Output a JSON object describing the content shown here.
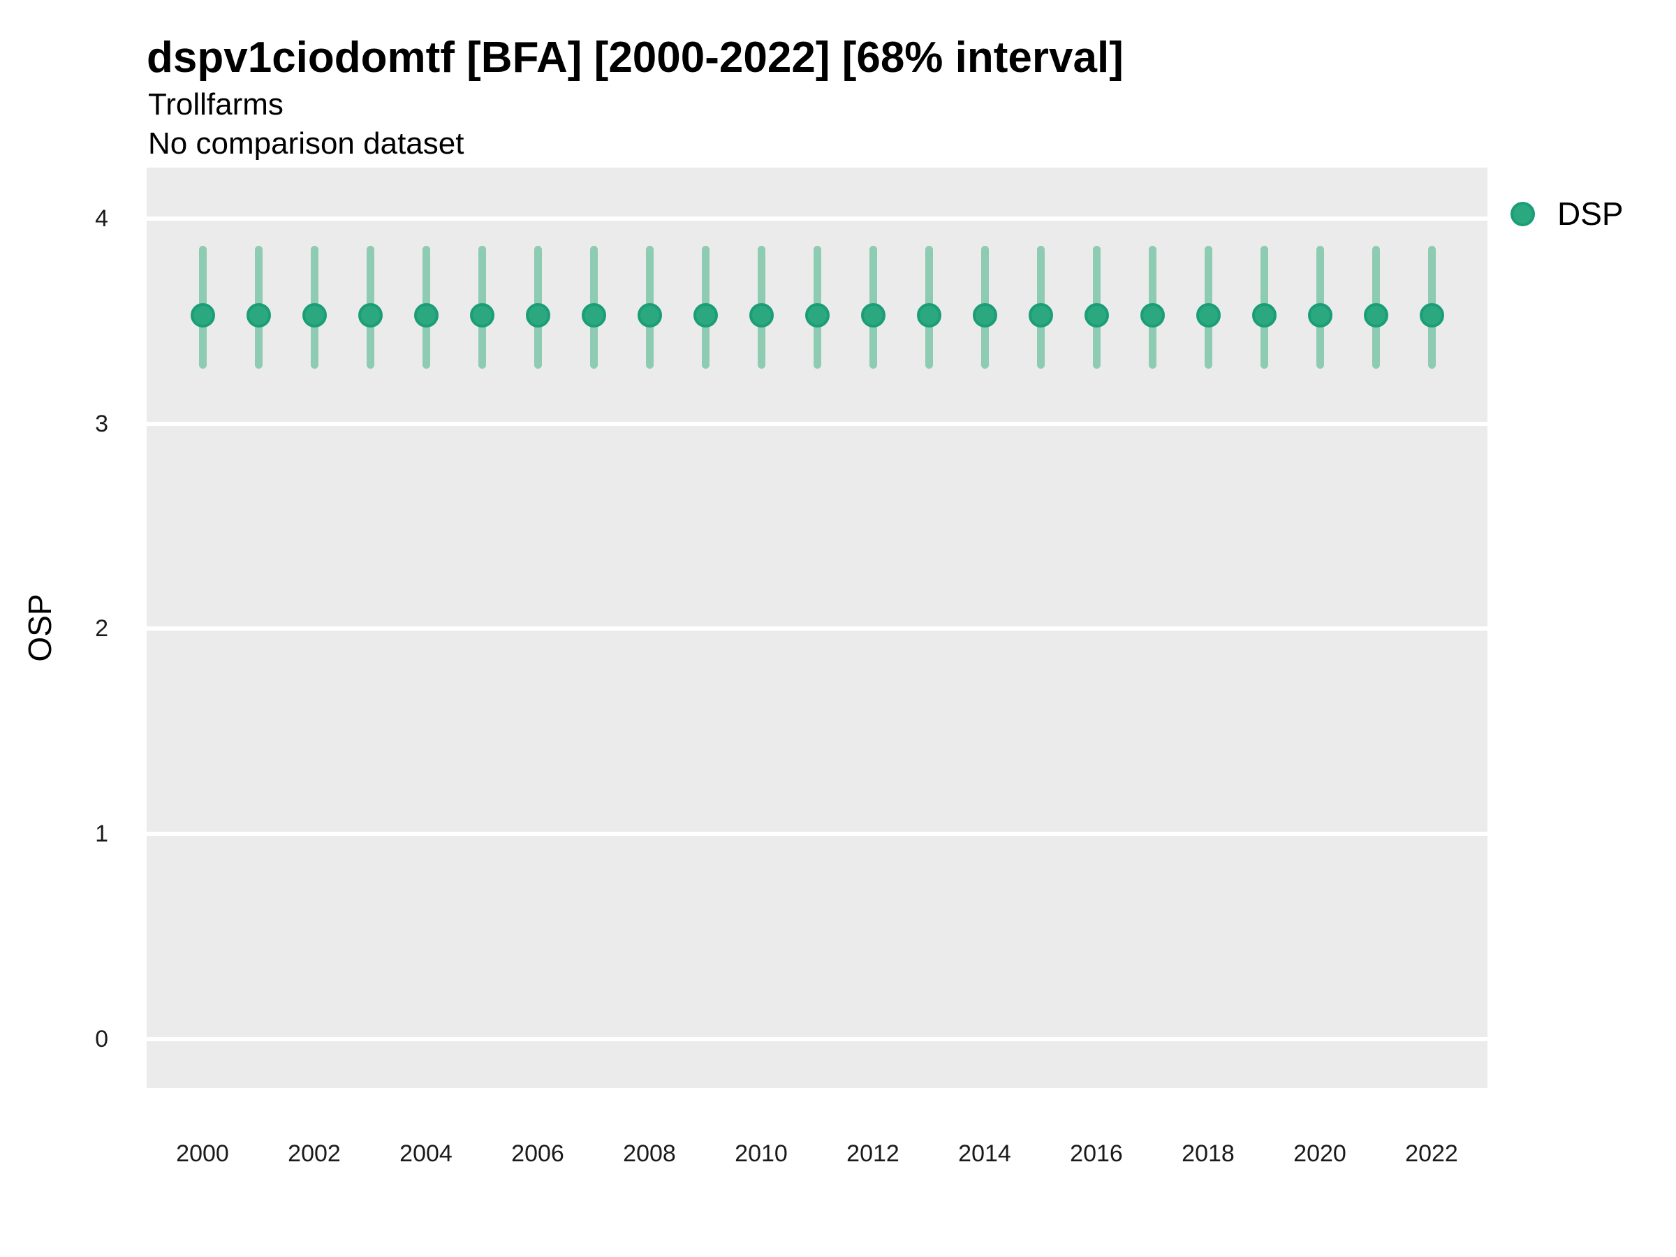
{
  "chart": {
    "title": "dspv1ciodomtf [BFA] [2000-2022] [68% interval]",
    "subtitle1": "Trollfarms",
    "subtitle2": "No comparison dataset",
    "y_axis_label": "OSP",
    "legend_label": "DSP"
  },
  "chart_data": {
    "type": "scatter",
    "subtype": "pointrange",
    "title": "dspv1ciodomtf [BFA] [2000-2022] [68% interval]",
    "subtitle": "Trollfarms / No comparison dataset",
    "xlabel": "",
    "ylabel": "OSP",
    "x": [
      2000,
      2001,
      2002,
      2003,
      2004,
      2005,
      2006,
      2007,
      2008,
      2009,
      2010,
      2011,
      2012,
      2013,
      2014,
      2015,
      2016,
      2017,
      2018,
      2019,
      2020,
      2021,
      2022
    ],
    "series": [
      {
        "name": "DSP",
        "values": [
          3.53,
          3.53,
          3.53,
          3.53,
          3.53,
          3.53,
          3.53,
          3.53,
          3.53,
          3.53,
          3.53,
          3.53,
          3.53,
          3.53,
          3.53,
          3.53,
          3.53,
          3.53,
          3.53,
          3.53,
          3.53,
          3.53,
          3.53
        ],
        "lower": [
          3.27,
          3.27,
          3.27,
          3.27,
          3.27,
          3.27,
          3.27,
          3.27,
          3.27,
          3.27,
          3.27,
          3.27,
          3.27,
          3.27,
          3.27,
          3.27,
          3.27,
          3.27,
          3.27,
          3.27,
          3.27,
          3.27,
          3.27
        ],
        "upper": [
          3.87,
          3.87,
          3.87,
          3.87,
          3.87,
          3.87,
          3.87,
          3.87,
          3.87,
          3.87,
          3.87,
          3.87,
          3.87,
          3.87,
          3.87,
          3.87,
          3.87,
          3.87,
          3.87,
          3.87,
          3.87,
          3.87,
          3.87
        ]
      }
    ],
    "ylim": [
      -0.24,
      4.25
    ],
    "yticks": [
      0,
      1,
      2,
      3,
      4
    ],
    "xtick_labels": [
      2000,
      2002,
      2004,
      2006,
      2008,
      2010,
      2012,
      2014,
      2016,
      2018,
      2020,
      2022
    ],
    "grid": "major-horizontal-only",
    "legend_position": "right-top",
    "colors": {
      "point_fill": "#2ba87e",
      "point_stroke": "#1b9e77",
      "interval": "#8ecbb3",
      "panel_bg": "#ebebeb",
      "gridline": "#ffffff"
    }
  }
}
